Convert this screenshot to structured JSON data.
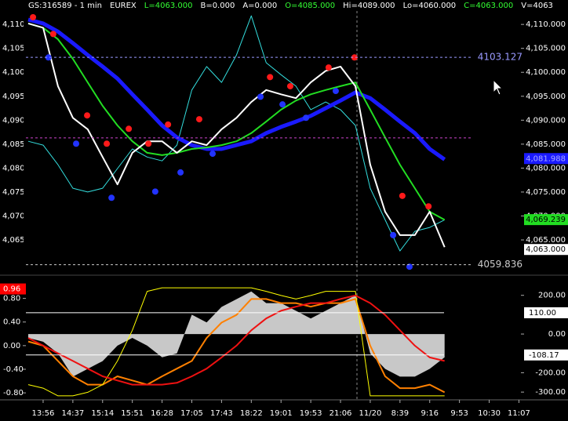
{
  "header": [
    {
      "text": "GS:316589 - 1 min",
      "color": "#ffffff"
    },
    {
      "text": "EUREX",
      "color": "#ffffff"
    },
    {
      "text": "L=4063.000",
      "color": "#33ff33"
    },
    {
      "text": "B=0.000",
      "color": "#ffffff"
    },
    {
      "text": "A=0.000",
      "color": "#ffffff"
    },
    {
      "text": "O=4085.000",
      "color": "#33ff33"
    },
    {
      "text": "Hi=4089.000",
      "color": "#ffffff"
    },
    {
      "text": "Lo=4060.000",
      "color": "#ffffff"
    },
    {
      "text": "C=4063.000",
      "color": "#33ff33"
    },
    {
      "text": "V=4063",
      "color": "#ffffff"
    }
  ],
  "chart_data": [
    {
      "type": "line",
      "xlim": [
        -1.45,
        17.65
      ],
      "ylim": [
        4057.8,
        4115.1
      ],
      "yticks": [
        {
          "value": 4110,
          "label": "4,110.000"
        },
        {
          "value": 4105,
          "label": "4,105.000"
        },
        {
          "value": 4100,
          "label": "4,100.000"
        },
        {
          "value": 4095,
          "label": "4,095.000"
        },
        {
          "value": 4090,
          "label": "4,090.000"
        },
        {
          "value": 4085,
          "label": "4,085.000"
        },
        {
          "value": 4080,
          "label": "4,080.000"
        },
        {
          "value": 4075,
          "label": "4,075.000"
        },
        {
          "value": 4070,
          "label": "4,070.000"
        },
        {
          "value": 4065,
          "label": "4,065.000"
        }
      ],
      "levels": [
        {
          "value": 4103.127,
          "label": "4103.127",
          "color": "#9999ff"
        },
        {
          "value": 4059.836,
          "label": "4059.836",
          "color": "#cccccc"
        },
        {
          "value": 4086.3,
          "color": "#cc44cc"
        }
      ],
      "price_labels": [
        {
          "value": 4081.988,
          "label": "4,081.988",
          "color": "#1a1aff",
          "text_color": "#aaaaff"
        },
        {
          "value": 4069.239,
          "label": "4,069.239",
          "color": "#22dd22",
          "text_color": "#000000"
        },
        {
          "value": 4063.0,
          "label": "4,063.000",
          "color": "#ffffff",
          "text_color": "#000000"
        }
      ],
      "x": [
        -0.5,
        0,
        0.5,
        1,
        1.5,
        2,
        2.5,
        3,
        3.5,
        4,
        4.5,
        5,
        5.5,
        6,
        6.5,
        7,
        7.5,
        8,
        8.5,
        9,
        9.5,
        10,
        10.5,
        11,
        11.5,
        12,
        12.5,
        13,
        13.5
      ],
      "series": [
        {
          "style": "line",
          "color": "#33dddd",
          "width": 1,
          "values": [
            4085.6,
            4084.8,
            4080.7,
            4075.8,
            4075.0,
            4075.8,
            4079.9,
            4084.0,
            4082.3,
            4081.5,
            4084.8,
            4096.3,
            4101.2,
            4097.9,
            4103.6,
            4111.8,
            4102.0,
            4099.5,
            4097.1,
            4092.2,
            4093.8,
            4092.2,
            4088.9,
            4075.8,
            4069.2,
            4062.7,
            4066.8,
            4067.6,
            4069.2
          ]
        },
        {
          "style": "line",
          "color": "#1a1aff",
          "width": 5,
          "values": [
            4111.0,
            4110.2,
            4108.5,
            4106.1,
            4103.6,
            4101.2,
            4098.7,
            4095.4,
            4092.2,
            4088.9,
            4086.4,
            4084.8,
            4084.0,
            4084.0,
            4084.8,
            4085.6,
            4087.3,
            4088.6,
            4089.7,
            4090.9,
            4092.5,
            4094.1,
            4095.8,
            4094.6,
            4092.2,
            4089.7,
            4087.3,
            4084.0,
            4081.8
          ]
        },
        {
          "style": "line",
          "color": "#22dd22",
          "width": 2,
          "values": [
            4110.2,
            4109.3,
            4106.9,
            4102.8,
            4097.9,
            4093.0,
            4088.9,
            4085.6,
            4083.2,
            4082.7,
            4083.2,
            4084.0,
            4084.3,
            4084.8,
            4085.6,
            4087.3,
            4089.7,
            4092.2,
            4094.1,
            4095.4,
            4096.3,
            4097.1,
            4097.9,
            4092.2,
            4086.4,
            4080.7,
            4075.8,
            4070.9,
            4069.2
          ]
        },
        {
          "style": "line",
          "color": "#ffffff",
          "width": 2,
          "values": [
            4110.2,
            4109.3,
            4097.1,
            4090.5,
            4088.1,
            4082.3,
            4076.6,
            4083.2,
            4085.6,
            4085.6,
            4083.2,
            4085.6,
            4084.8,
            4088.1,
            4090.5,
            4093.8,
            4096.3,
            4095.4,
            4094.6,
            4097.9,
            4100.3,
            4101.2,
            4097.1,
            4080.7,
            4070.9,
            4066.0,
            4066.0,
            4070.9,
            4063.5
          ]
        },
        {
          "style": "scatter",
          "color": "#ff1a1a",
          "x": [
            -0.34,
            0.34,
            1.48,
            2.14,
            2.88,
            3.54,
            4.2,
            5.25,
            7.63,
            8.31,
            9.6,
            10.47,
            12.08,
            12.96
          ],
          "values": [
            4111.5,
            4108.0,
            4091.0,
            4085.1,
            4088.2,
            4085.1,
            4089.1,
            4090.2,
            4099.0,
            4097.1,
            4101.0,
            4103.1,
            4074.2,
            4072.0
          ]
        },
        {
          "style": "scatter",
          "color": "#2233ff",
          "x": [
            0.18,
            1.11,
            2.3,
            3.77,
            4.62,
            5.7,
            7.31,
            8.05,
            8.84,
            9.84,
            11.77,
            12.32
          ],
          "values": [
            4103.1,
            4085.1,
            4073.8,
            4075.1,
            4079.1,
            4083.0,
            4094.9,
            4093.3,
            4090.5,
            4096.1,
            4066.0,
            4059.4
          ]
        }
      ]
    },
    {
      "type": "line",
      "xlim": [
        -1.45,
        17.65
      ],
      "xticks": [
        {
          "value": 0,
          "label": "13:56"
        },
        {
          "value": 1,
          "label": "14:37"
        },
        {
          "value": 2,
          "label": "15:14"
        },
        {
          "value": 3,
          "label": "15:51"
        },
        {
          "value": 4,
          "label": "16:28"
        },
        {
          "value": 5,
          "label": "17:05"
        },
        {
          "value": 6,
          "label": "17:43"
        },
        {
          "value": 7,
          "label": "18:22"
        },
        {
          "value": 8,
          "label": "19:01"
        },
        {
          "value": 9,
          "label": "19:53"
        },
        {
          "value": 10,
          "label": "21:06"
        },
        {
          "value": 11,
          "label": "11/20"
        },
        {
          "value": 12,
          "label": "8:39"
        },
        {
          "value": 13,
          "label": "9:16"
        },
        {
          "value": 14,
          "label": "9:53"
        },
        {
          "value": 15,
          "label": "10:30"
        },
        {
          "value": 16,
          "label": "11:07"
        }
      ],
      "ylim": [
        -340,
        300
      ],
      "yticks": [
        {
          "value": 200,
          "label": "200.00"
        },
        {
          "value": 0,
          "label": "0.00"
        },
        {
          "value": -200,
          "label": "-200.00"
        },
        {
          "value": -300,
          "label": "-300.00"
        }
      ],
      "levels": [
        {
          "value": 110,
          "label": "110.00",
          "color": "#ffffff"
        },
        {
          "value": -108.17,
          "label": "-108.17",
          "color": "#ffffff"
        }
      ],
      "y2lim": [
        -0.918,
        1.18
      ],
      "y2ticks": [
        {
          "value": 0.8,
          "label": "0.80"
        },
        {
          "value": 0.4,
          "label": "0.40"
        },
        {
          "value": 0,
          "label": "0.00"
        },
        {
          "value": -0.4,
          "label": "-0.40"
        },
        {
          "value": -0.8,
          "label": "-0.80"
        }
      ],
      "y2_marker": {
        "value": 0.96,
        "label": "0.96",
        "color": "#ff0000"
      },
      "x": [
        -0.5,
        0,
        0.5,
        1,
        1.5,
        2,
        2.5,
        3,
        3.5,
        4,
        4.5,
        5,
        5.5,
        6,
        6.5,
        7,
        7.5,
        8,
        8.5,
        9,
        9.5,
        10,
        10.5,
        11,
        11.5,
        12,
        12.5,
        13,
        13.5
      ],
      "series": [
        {
          "style": "area",
          "color": "#c8c8c8",
          "values": [
            -20,
            -40,
            -100,
            -220,
            -180,
            -140,
            -60,
            -20,
            -60,
            -120,
            -100,
            100,
            60,
            140,
            180,
            220,
            160,
            160,
            120,
            80,
            120,
            160,
            200,
            -100,
            -180,
            -220,
            -220,
            -180,
            -120
          ]
        },
        {
          "style": "line",
          "axis": "y2",
          "color": "#ff8000",
          "width": 2,
          "values": [
            0.07,
            0.0,
            -0.26,
            -0.52,
            -0.66,
            -0.66,
            -0.52,
            -0.59,
            -0.66,
            -0.52,
            -0.39,
            -0.26,
            0.13,
            0.39,
            0.52,
            0.79,
            0.79,
            0.72,
            0.72,
            0.66,
            0.72,
            0.72,
            0.79,
            0.0,
            -0.52,
            -0.72,
            -0.72,
            -0.66,
            -0.79
          ]
        },
        {
          "style": "line",
          "axis": "y2",
          "color": "#ffff00",
          "width": 1,
          "values": [
            -0.66,
            -0.72,
            -0.85,
            -0.85,
            -0.79,
            -0.66,
            -0.26,
            0.26,
            0.92,
            0.98,
            0.98,
            0.98,
            0.98,
            0.98,
            0.98,
            0.98,
            0.92,
            0.85,
            0.79,
            0.85,
            0.92,
            0.92,
            0.92,
            -0.85,
            -0.85,
            -0.85,
            -0.85,
            -0.85,
            -0.85
          ]
        },
        {
          "style": "line",
          "axis": "y2",
          "color": "#ee1111",
          "width": 2,
          "values": [
            0.13,
            0.0,
            -0.13,
            -0.26,
            -0.39,
            -0.52,
            -0.59,
            -0.66,
            -0.66,
            -0.66,
            -0.63,
            -0.52,
            -0.39,
            -0.2,
            0.0,
            0.26,
            0.46,
            0.59,
            0.66,
            0.72,
            0.72,
            0.79,
            0.85,
            0.72,
            0.52,
            0.26,
            0.0,
            -0.2,
            -0.26
          ]
        }
      ]
    }
  ]
}
